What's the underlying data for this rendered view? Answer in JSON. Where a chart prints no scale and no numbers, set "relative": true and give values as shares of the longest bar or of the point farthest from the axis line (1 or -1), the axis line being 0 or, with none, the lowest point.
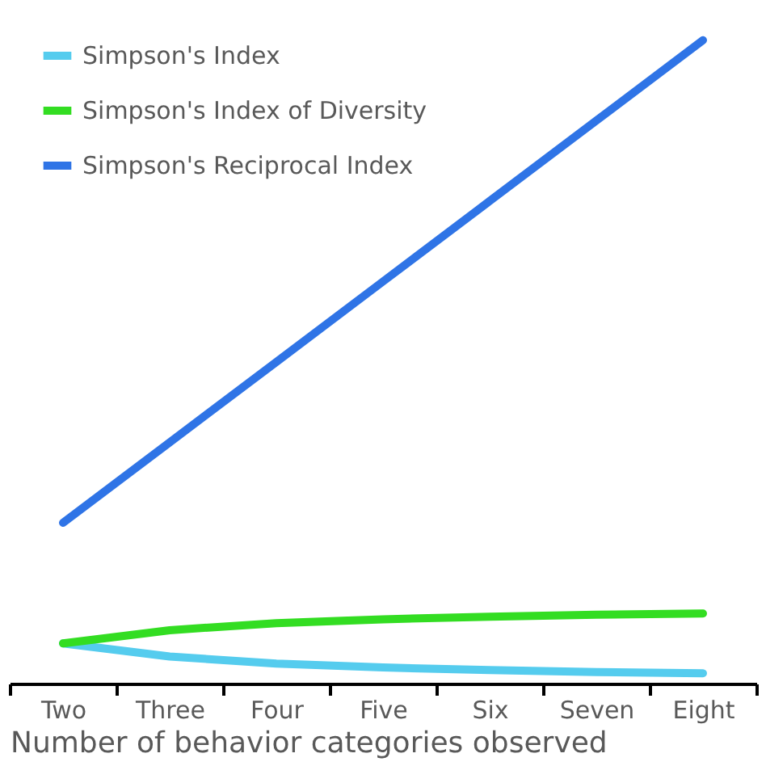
{
  "chart_data": {
    "type": "line",
    "relative": true,
    "xlabel": "Number of behavior categories observed",
    "categories": [
      "Two",
      "Three",
      "Four",
      "Five",
      "Six",
      "Seven",
      "Eight"
    ],
    "legend": "top left",
    "marker": "none",
    "line_style": "solid",
    "grid": false,
    "series": [
      {
        "name": "Simpson's Index",
        "color": "#55ccee",
        "values": [
          0.0625,
          0.042,
          0.031,
          0.025,
          0.021,
          0.018,
          0.016
        ]
      },
      {
        "name": "Simpson's Index of Diversity",
        "color": "#33dd22",
        "values": [
          0.0625,
          0.083,
          0.094,
          0.1,
          0.104,
          0.107,
          0.109
        ]
      },
      {
        "name": "Simpson's Reciprocal Index",
        "color": "#2f74e6",
        "values": [
          0.25,
          0.375,
          0.5,
          0.625,
          0.75,
          0.875,
          1
        ]
      }
    ]
  }
}
